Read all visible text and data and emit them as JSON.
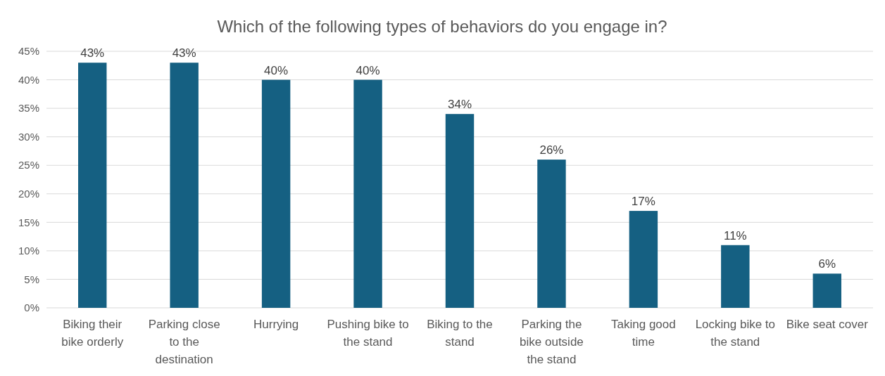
{
  "chart_data": {
    "type": "bar",
    "title": "Which of the following types of behaviors do you engage in?",
    "categories": [
      "Biking their bike orderly",
      "Parking close to the destination",
      "Hurrying",
      "Pushing bike to the stand",
      "Biking to the stand",
      "Parking the bike outside the stand",
      "Taking good time",
      "Locking bike to the stand",
      "Bike seat cover"
    ],
    "values": [
      43,
      43,
      40,
      40,
      34,
      26,
      17,
      11,
      6
    ],
    "value_labels": [
      "43%",
      "43%",
      "40%",
      "40%",
      "34%",
      "26%",
      "17%",
      "11%",
      "6%"
    ],
    "color": "#156082",
    "ylim": [
      0,
      45
    ],
    "yticks": [
      {
        "value": 0,
        "label": "0%"
      },
      {
        "value": 5,
        "label": "5%"
      },
      {
        "value": 10,
        "label": "10%"
      },
      {
        "value": 15,
        "label": "15%"
      },
      {
        "value": 20,
        "label": "20%"
      },
      {
        "value": 25,
        "label": "25%"
      },
      {
        "value": 30,
        "label": "30%"
      },
      {
        "value": 35,
        "label": "35%"
      },
      {
        "value": 40,
        "label": "40%"
      },
      {
        "value": 45,
        "label": "45%"
      }
    ],
    "grid": "y"
  }
}
